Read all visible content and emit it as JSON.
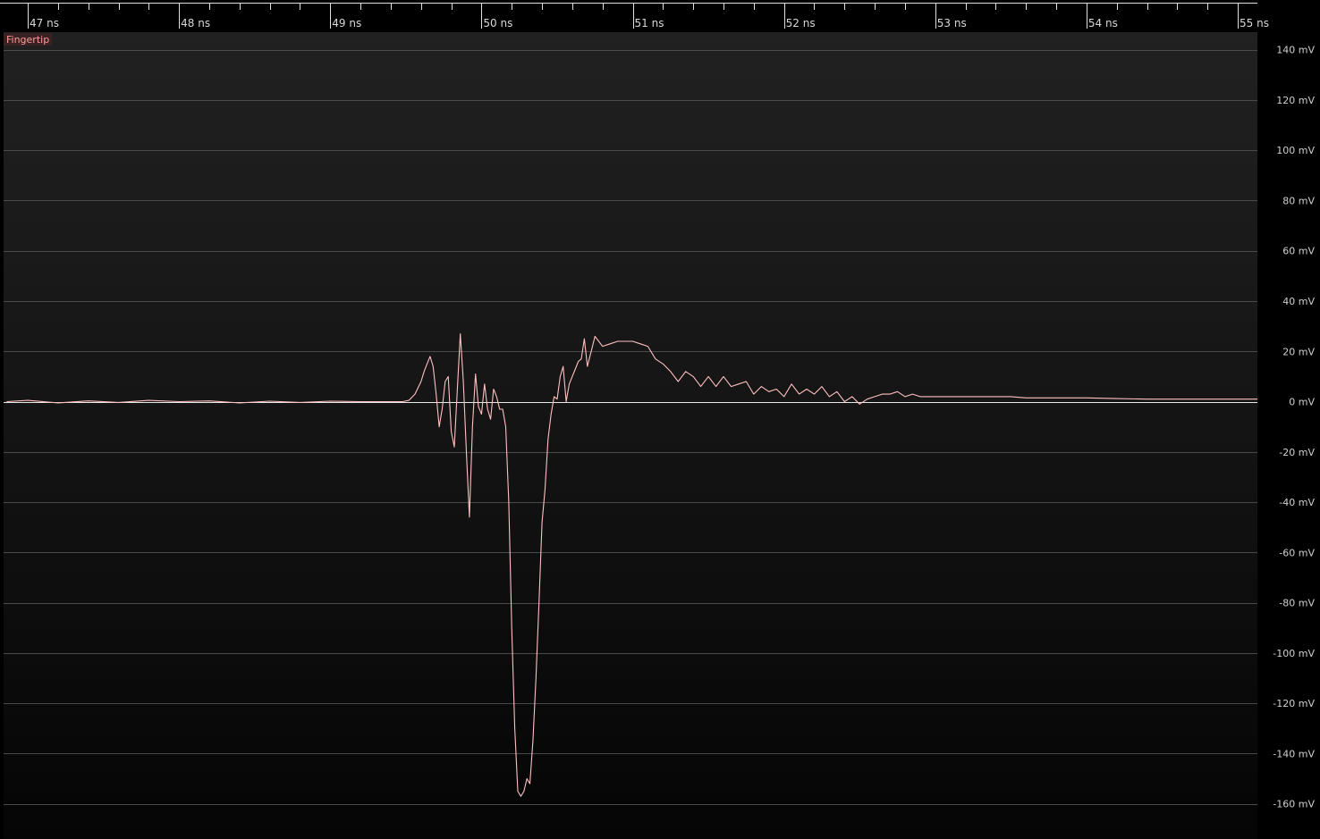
{
  "app": {
    "channel_label": "Fingertip",
    "trace_color": "#ffc0c0",
    "grid_color": "#4a4a4a",
    "zero_line_color": "#e8e8e8"
  },
  "chart_data": {
    "type": "line",
    "title": "",
    "xlabel": "",
    "ylabel": "",
    "x_unit": "ns",
    "y_unit": "mV",
    "xlim": [
      46.84,
      55.13
    ],
    "ylim": [
      -174,
      147
    ],
    "x_tick_labels": [
      "47 ns",
      "48 ns",
      "49 ns",
      "50 ns",
      "51 ns",
      "52 ns",
      "53 ns",
      "54 ns",
      "55 ns"
    ],
    "x_ticks": [
      47,
      48,
      49,
      50,
      51,
      52,
      53,
      54,
      55
    ],
    "y_tick_labels": [
      "140 mV",
      "120 mV",
      "100 mV",
      "80 mV",
      "60 mV",
      "40 mV",
      "20 mV",
      "0 mV",
      "-20 mV",
      "-40 mV",
      "-60 mV",
      "-80 mV",
      "-100 mV",
      "-120 mV",
      "-140 mV",
      "-160 mV"
    ],
    "y_ticks": [
      140,
      120,
      100,
      80,
      60,
      40,
      20,
      0,
      -20,
      -40,
      -60,
      -80,
      -100,
      -120,
      -140,
      -160
    ],
    "grid": true,
    "series": [
      {
        "name": "Fingertip",
        "x": [
          46.86,
          47.0,
          47.2,
          47.4,
          47.6,
          47.8,
          48.0,
          48.2,
          48.4,
          48.6,
          48.8,
          49.0,
          49.2,
          49.4,
          49.48,
          49.52,
          49.56,
          49.6,
          49.62,
          49.64,
          49.66,
          49.68,
          49.7,
          49.72,
          49.74,
          49.76,
          49.78,
          49.8,
          49.82,
          49.84,
          49.86,
          49.88,
          49.9,
          49.92,
          49.94,
          49.96,
          49.98,
          50.0,
          50.02,
          50.04,
          50.06,
          50.08,
          50.1,
          50.12,
          50.14,
          50.16,
          50.18,
          50.2,
          50.22,
          50.24,
          50.26,
          50.28,
          50.3,
          50.32,
          50.34,
          50.36,
          50.38,
          50.4,
          50.42,
          50.44,
          50.46,
          50.48,
          50.5,
          50.52,
          50.54,
          50.56,
          50.58,
          50.6,
          50.62,
          50.64,
          50.66,
          50.68,
          50.7,
          50.75,
          50.8,
          50.85,
          50.9,
          50.95,
          51.0,
          51.05,
          51.1,
          51.15,
          51.2,
          51.25,
          51.3,
          51.35,
          51.4,
          51.45,
          51.5,
          51.55,
          51.6,
          51.65,
          51.7,
          51.75,
          51.8,
          51.85,
          51.9,
          51.95,
          52.0,
          52.05,
          52.1,
          52.15,
          52.2,
          52.25,
          52.3,
          52.35,
          52.4,
          52.45,
          52.5,
          52.55,
          52.6,
          52.65,
          52.7,
          52.75,
          52.8,
          52.85,
          52.9,
          52.95,
          53.0,
          53.1,
          53.2,
          53.3,
          53.4,
          53.5,
          53.6,
          53.7,
          53.8,
          53.9,
          54.0,
          54.2,
          54.4,
          54.6,
          54.8,
          55.0,
          55.13
        ],
        "values": [
          0,
          0.5,
          -0.5,
          0.3,
          -0.3,
          0.5,
          0,
          0.3,
          -0.5,
          0.2,
          -0.3,
          0.2,
          0,
          0,
          0,
          0.5,
          3,
          8,
          12,
          15,
          18,
          14,
          3,
          -10,
          -3,
          8,
          10,
          -12,
          -18,
          5,
          27,
          8,
          -20,
          -46,
          -10,
          11,
          -2,
          -5,
          7,
          -3,
          -7,
          5,
          2,
          -3,
          -3,
          -10,
          -40,
          -90,
          -130,
          -155,
          -157,
          -155,
          -150,
          -152,
          -135,
          -110,
          -80,
          -48,
          -35,
          -15,
          -5,
          2,
          1,
          10,
          14,
          0,
          7,
          10,
          13,
          16,
          17,
          25,
          14,
          26,
          22,
          23,
          24,
          24,
          24,
          23,
          22,
          17,
          15,
          12,
          8,
          12,
          10,
          6,
          10,
          6,
          10,
          6,
          7,
          8,
          3,
          6,
          4,
          5,
          2,
          7,
          3,
          5,
          3,
          6,
          2,
          4,
          0,
          2,
          -1,
          1,
          2,
          3,
          3,
          4,
          2,
          3,
          2,
          2,
          2,
          2,
          2,
          2,
          2,
          2,
          1.5,
          1.5,
          1.5,
          1.5,
          1.5,
          1.2,
          1.0,
          1.0,
          1.0,
          1.0,
          1.0
        ]
      }
    ]
  }
}
